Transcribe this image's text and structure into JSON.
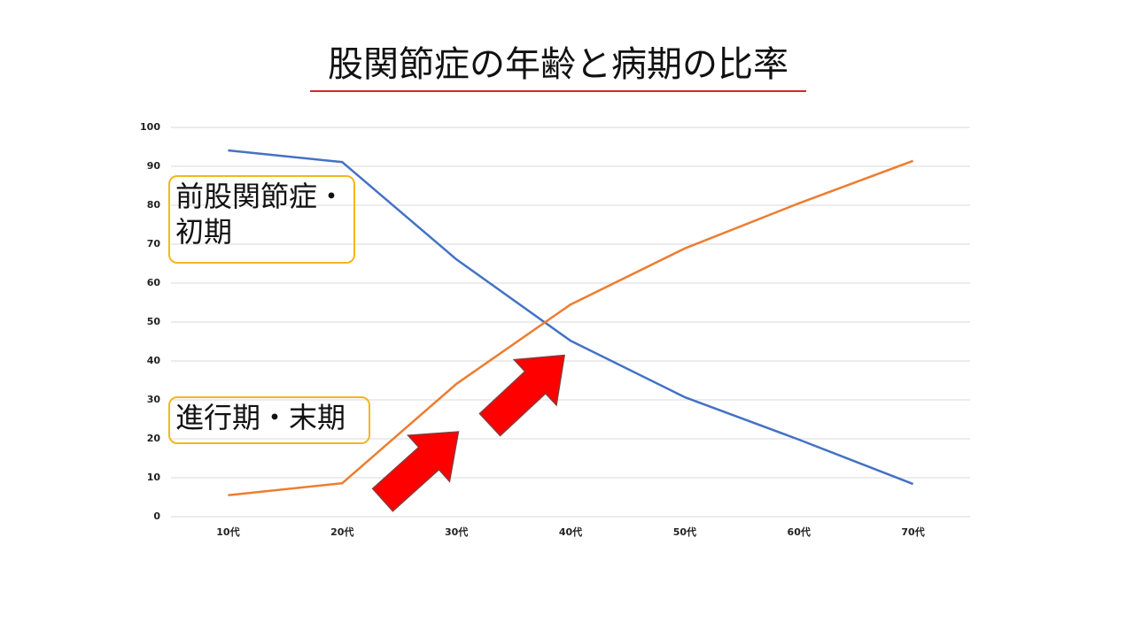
{
  "chart_data": {
    "type": "line",
    "title": "股関節症の年齢と病期の比率",
    "categories": [
      "10代",
      "20代",
      "30代",
      "40代",
      "50代",
      "60代",
      "70代"
    ],
    "series": [
      {
        "color": "#4472c4",
        "values": [
          94.1,
          91.1,
          66.1,
          45.2,
          30.7,
          19.8,
          8.4
        ]
      },
      {
        "color": "#ed7d31",
        "values": [
          5.5,
          8.6,
          34.1,
          54.5,
          68.9,
          80.5,
          91.4
        ]
      }
    ],
    "ylim": [
      0,
      100
    ],
    "yticks": [
      0,
      10,
      20,
      30,
      40,
      50,
      60,
      70,
      80,
      90,
      100
    ],
    "grid": true,
    "annotations": [
      "前股関節症・初期",
      "進行期・末期"
    ]
  }
}
